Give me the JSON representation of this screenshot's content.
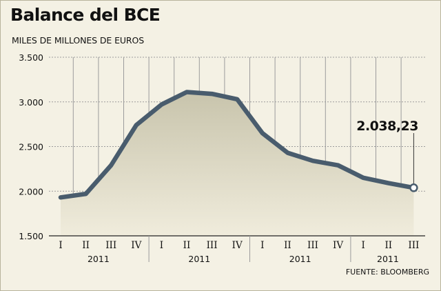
{
  "header": {
    "title": "Balance del BCE",
    "subtitle": "MILES DE MILLONES DE EUROS",
    "source": "FUENTE: BLOOMBERG"
  },
  "colors": {
    "background": "#f4f1e4",
    "line": "#495c6d",
    "area_top": "#c8c4ac",
    "area_bottom": "#f0ecdc",
    "gridline": "#9b9b9b",
    "endpoint_fill": "#ffffff"
  },
  "chart_data": {
    "type": "area",
    "title": "Balance del BCE",
    "subtitle": "MILES DE MILLONES DE EUROS",
    "xlabel": "",
    "ylabel": "",
    "ylim": [
      1500,
      3500
    ],
    "yticks": [
      3500,
      3000,
      2500,
      2000,
      1500
    ],
    "ytick_labels": [
      "3.500",
      "3.000",
      "2.500",
      "2.000",
      "1.500"
    ],
    "grid": true,
    "categories": [
      "I",
      "II",
      "III",
      "IV",
      "I",
      "II",
      "III",
      "IV",
      "I",
      "II",
      "III",
      "IV",
      "I",
      "II",
      "III"
    ],
    "year_groups": [
      {
        "label": "2011",
        "quarters": 4
      },
      {
        "label": "2011",
        "quarters": 4
      },
      {
        "label": "2011",
        "quarters": 4
      },
      {
        "label": "2011",
        "quarters": 3
      }
    ],
    "series": [
      {
        "values": [
          1930,
          1970,
          2290,
          2740,
          2970,
          3110,
          3090,
          3030,
          2650,
          2430,
          2340,
          2290,
          2150,
          2090,
          2038.23
        ]
      }
    ],
    "annotations": [
      {
        "text": "2.038,23",
        "category_index": 14
      }
    ]
  }
}
